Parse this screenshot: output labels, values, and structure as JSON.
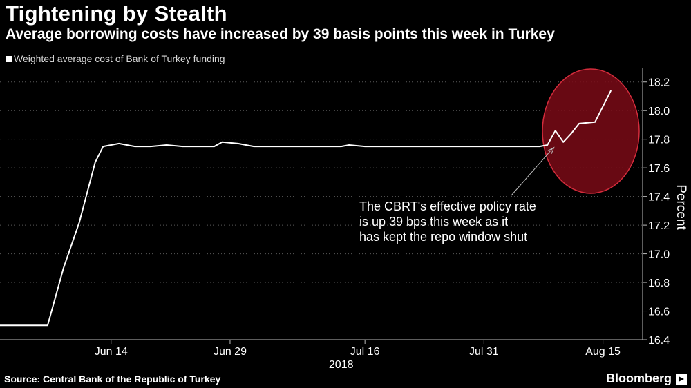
{
  "header": {
    "title": "Tightening by Stealth",
    "subtitle": "Average borrowing costs have increased by 39 basis points this week in Turkey"
  },
  "footer": {
    "source": "Source: Central Bank of the Republic of Turkey",
    "brand": "Bloomberg"
  },
  "chart_data": {
    "type": "line",
    "title": "Tightening by Stealth",
    "subtitle": "Average borrowing costs have increased by 39 basis points this week in Turkey",
    "ylabel": "Percent",
    "xlabel": "",
    "year_label": "2018",
    "ylim": [
      16.4,
      18.3
    ],
    "yticks": [
      16.4,
      16.6,
      16.8,
      17.0,
      17.2,
      17.4,
      17.6,
      17.8,
      18.0,
      18.2
    ],
    "ytick_labels": [
      "16.4",
      "16.6",
      "16.8",
      "17.0",
      "17.2",
      "17.4",
      "17.6",
      "17.8",
      "18.0",
      "18.2"
    ],
    "xlim": [
      "2018-05-31",
      "2018-08-20"
    ],
    "xticks": [
      "2018-06-14",
      "2018-06-29",
      "2018-07-16",
      "2018-07-31",
      "2018-08-15"
    ],
    "xtick_labels": [
      "Jun 14",
      "Jun 29",
      "Jul 16",
      "Jul 31",
      "Aug 15"
    ],
    "grid": "y-dotted",
    "legend_position": "top-left",
    "series": [
      {
        "name": "Weighted average cost of Bank of Turkey funding",
        "color": "#ffffff",
        "points": [
          [
            "2018-05-31",
            16.5
          ],
          [
            "2018-06-06",
            16.5
          ],
          [
            "2018-06-07",
            16.7
          ],
          [
            "2018-06-08",
            16.9
          ],
          [
            "2018-06-10",
            17.22
          ],
          [
            "2018-06-12",
            17.64
          ],
          [
            "2018-06-13",
            17.75
          ],
          [
            "2018-06-15",
            17.77
          ],
          [
            "2018-06-17",
            17.75
          ],
          [
            "2018-06-19",
            17.75
          ],
          [
            "2018-06-21",
            17.76
          ],
          [
            "2018-06-23",
            17.75
          ],
          [
            "2018-06-27",
            17.75
          ],
          [
            "2018-06-28",
            17.78
          ],
          [
            "2018-06-30",
            17.77
          ],
          [
            "2018-07-02",
            17.75
          ],
          [
            "2018-07-13",
            17.75
          ],
          [
            "2018-07-14",
            17.76
          ],
          [
            "2018-07-16",
            17.75
          ],
          [
            "2018-08-07",
            17.75
          ],
          [
            "2018-08-08",
            17.76
          ],
          [
            "2018-08-09",
            17.86
          ],
          [
            "2018-08-10",
            17.78
          ],
          [
            "2018-08-11",
            17.84
          ],
          [
            "2018-08-12",
            17.91
          ],
          [
            "2018-08-14",
            17.92
          ],
          [
            "2018-08-16",
            18.14
          ]
        ]
      }
    ],
    "annotation": {
      "text_lines": [
        "The CBRT's effective policy rate",
        "is up 39 bps this week as it",
        "has kept the repo window shut"
      ],
      "arrow_target": [
        "2018-08-09",
        17.75
      ],
      "highlight_fill": "#7a0a16",
      "highlight_stroke": "#d42c3c"
    }
  }
}
